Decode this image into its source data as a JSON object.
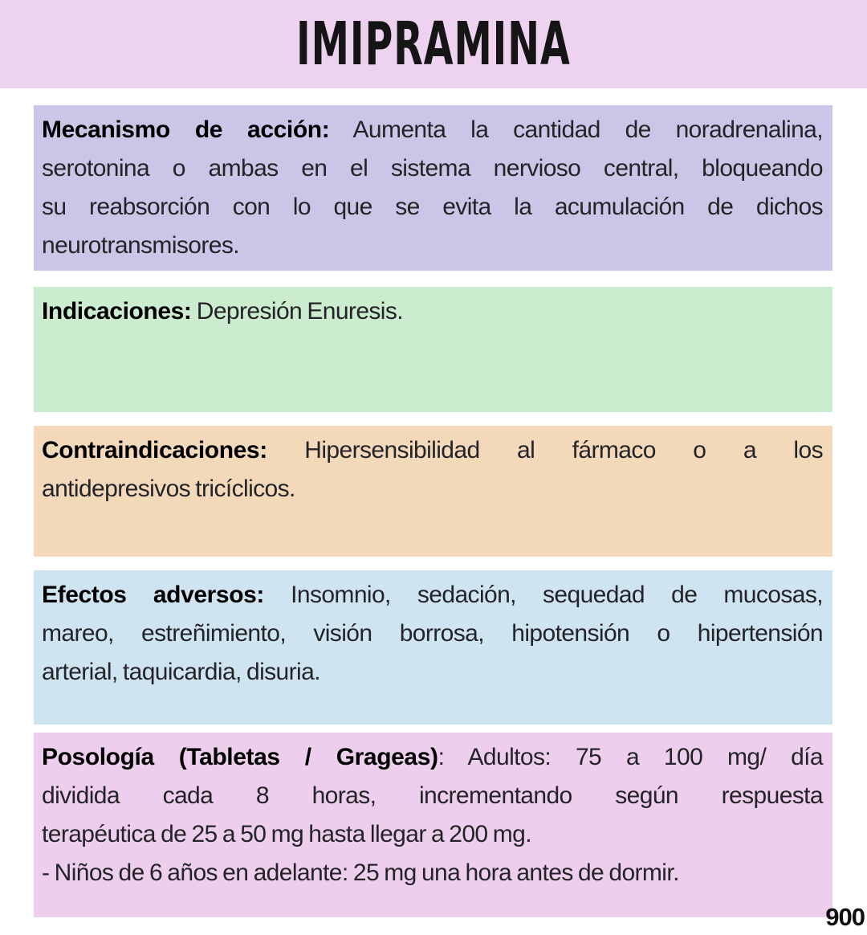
{
  "header": {
    "title": "IMIPRAMINA"
  },
  "page_number": "900",
  "colors": {
    "banner_background": "#eed3f1",
    "page_background": "#ffffff",
    "body_text": "#242428",
    "label_text": "#000000"
  },
  "sections": [
    {
      "key": "mecanismo",
      "label": "Mecanismo de acción:",
      "background": "#cbc5e8",
      "lines": [
        {
          "text": "Aumenta la cantidad de noradrenalina,",
          "justify": true,
          "with_label": true
        },
        {
          "text": "serotonina o ambas en el sistema nervioso central, bloqueando",
          "justify": true
        },
        {
          "text": "su reabsorción con lo que se evita la acumulación de dichos",
          "justify": true
        },
        {
          "text": "neurotransmisores.",
          "justify": false
        }
      ]
    },
    {
      "key": "indicaciones",
      "label": "Indicaciones:",
      "background": "#cbecce",
      "lines": [
        {
          "text": "Depresión Enuresis.",
          "justify": false,
          "with_label": true
        }
      ]
    },
    {
      "key": "contraindicaciones",
      "label": "Contraindicaciones:",
      "background": "#f3d9ba",
      "lines": [
        {
          "text": "Hipersensibilidad al fármaco o a los",
          "justify": true,
          "with_label": true
        },
        {
          "text": "antidepresivos tricíclicos.",
          "justify": false
        }
      ]
    },
    {
      "key": "efectos",
      "label": "Efectos adversos:",
      "background": "#cee5f1",
      "lines": [
        {
          "text": "Insomnio, sedación, sequedad de mucosas,",
          "justify": true,
          "with_label": true
        },
        {
          "text": "mareo, estreñimiento, visión borrosa, hipotensión o hipertensión",
          "justify": true
        },
        {
          "text": "arterial, taquicardia, disuria.",
          "justify": false
        }
      ]
    },
    {
      "key": "posologia",
      "label": "Posología (Tabletas / Grageas)",
      "background": "#edcfed",
      "lines": [
        {
          "text": ":  Adultos: 75 a 100 mg/ día",
          "justify": true,
          "with_label": true
        },
        {
          "text": "dividida cada 8 horas, incrementando según respuesta",
          "justify": true
        },
        {
          "text": "terapéutica de 25 a 50 mg hasta llegar a 200 mg.",
          "justify": false
        },
        {
          "text": "- Niños de 6 años en adelante: 25 mg una hora antes de dormir.",
          "justify": false
        }
      ]
    }
  ]
}
